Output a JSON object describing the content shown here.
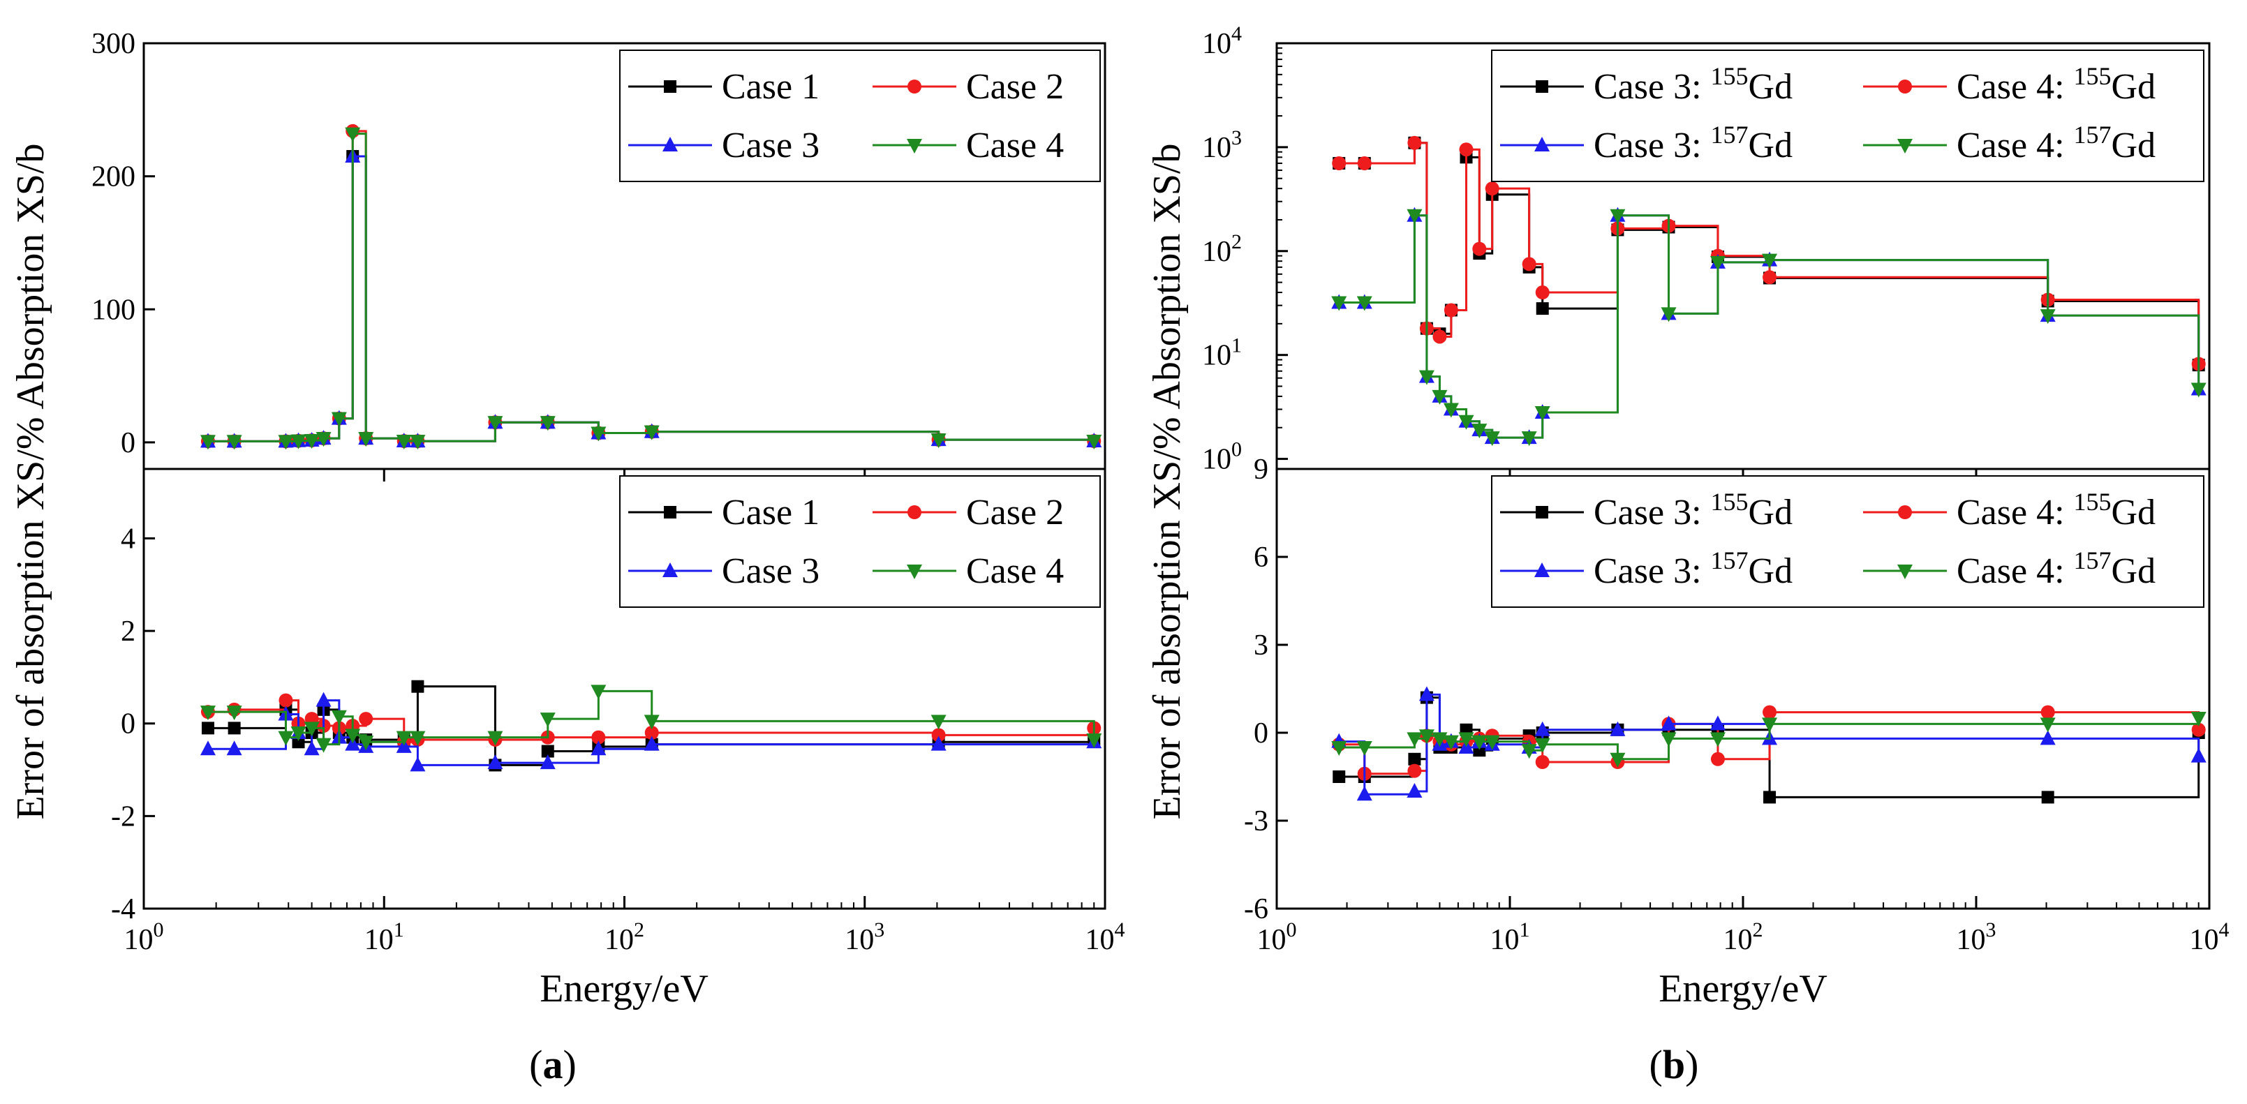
{
  "colors": {
    "case1": "#000000",
    "case2": "#ee1c1c",
    "case3": "#1c1cee",
    "case4": "#1f8a1f"
  },
  "panel_a": {
    "ylabel": "Error of absorption XS/% Absorption XS/b",
    "xlabel": "Energy/eV",
    "caption": {
      "open": "(",
      "letter": "a",
      "close": ")"
    },
    "top_yticks": [
      "0",
      "100",
      "200",
      "300"
    ],
    "bottom_yticks": [
      "-4",
      "-2",
      "0",
      "2",
      "4"
    ],
    "xticks": [
      {
        "base": "10",
        "exp": "0"
      },
      {
        "base": "10",
        "exp": "1"
      },
      {
        "base": "10",
        "exp": "2"
      },
      {
        "base": "10",
        "exp": "3"
      },
      {
        "base": "10",
        "exp": "4"
      }
    ],
    "legend": [
      {
        "text": "Case 1",
        "sup": "",
        "tail": ""
      },
      {
        "text": "Case 2",
        "sup": "",
        "tail": ""
      },
      {
        "text": "Case 3",
        "sup": "",
        "tail": ""
      },
      {
        "text": "Case 4",
        "sup": "",
        "tail": ""
      }
    ]
  },
  "panel_b": {
    "ylabel": "Error of absorption XS/% Absorption XS/b",
    "xlabel": "Energy/eV",
    "caption": {
      "open": "(",
      "letter": "b",
      "close": ")"
    },
    "top_yticks": [
      {
        "base": "10",
        "exp": "0"
      },
      {
        "base": "10",
        "exp": "1"
      },
      {
        "base": "10",
        "exp": "2"
      },
      {
        "base": "10",
        "exp": "3"
      },
      {
        "base": "10",
        "exp": "4"
      }
    ],
    "bottom_yticks": [
      "-6",
      "-3",
      "0",
      "3",
      "6",
      "9"
    ],
    "xticks": [
      {
        "base": "10",
        "exp": "0"
      },
      {
        "base": "10",
        "exp": "1"
      },
      {
        "base": "10",
        "exp": "2"
      },
      {
        "base": "10",
        "exp": "3"
      },
      {
        "base": "10",
        "exp": "4"
      }
    ],
    "legend": [
      {
        "text": "Case 3: ",
        "sup": "155",
        "tail": "Gd"
      },
      {
        "text": "Case 4: ",
        "sup": "155",
        "tail": "Gd"
      },
      {
        "text": "Case 3: ",
        "sup": "157",
        "tail": "Gd"
      },
      {
        "text": "Case 4: ",
        "sup": "157",
        "tail": "Gd"
      }
    ]
  },
  "chart_data": [
    {
      "panel": "a-top",
      "type": "line",
      "step": "post",
      "xscale": "log",
      "xlim": [
        1,
        10000
      ],
      "ylim": [
        -20,
        300
      ],
      "xlabel": "Energy/eV",
      "ylabel": "Absorption XS/b",
      "legend_placement": "top-right",
      "series": [
        {
          "name": "Case 1",
          "marker": "square",
          "color": "#000000",
          "x": [
            1.85,
            2.38,
            3.9,
            4.4,
            5.0,
            5.6,
            6.5,
            7.4,
            8.4,
            12.1,
            13.8,
            29,
            48,
            78,
            130,
            2030,
            9000
          ],
          "y": [
            0.8,
            0.8,
            0.8,
            1.2,
            1.5,
            3,
            18,
            215,
            3,
            1,
            0.9,
            15,
            15,
            7,
            8,
            2,
            1
          ]
        },
        {
          "name": "Case 2",
          "marker": "circle",
          "color": "#ee1c1c",
          "x": [
            1.85,
            2.38,
            3.9,
            4.4,
            5.0,
            5.6,
            6.5,
            7.4,
            8.4,
            12.1,
            13.8,
            29,
            48,
            78,
            130,
            2030,
            9000
          ],
          "y": [
            0.8,
            0.8,
            0.8,
            1.2,
            1.5,
            3,
            18,
            234,
            3,
            1,
            0.9,
            15,
            15,
            7,
            8,
            2,
            1
          ]
        },
        {
          "name": "Case 3",
          "marker": "triangle-up",
          "color": "#1c1cee",
          "x": [
            1.85,
            2.38,
            3.9,
            4.4,
            5.0,
            5.6,
            6.5,
            7.4,
            8.4,
            12.1,
            13.8,
            29,
            48,
            78,
            130,
            2030,
            9000
          ],
          "y": [
            0.8,
            0.8,
            0.8,
            1.2,
            1.5,
            3,
            18,
            215,
            3,
            1,
            0.9,
            15,
            15,
            7,
            8,
            2,
            1
          ]
        },
        {
          "name": "Case 4",
          "marker": "triangle-down",
          "color": "#1f8a1f",
          "x": [
            1.85,
            2.38,
            3.9,
            4.4,
            5.0,
            5.6,
            6.5,
            7.4,
            8.4,
            12.1,
            13.8,
            29,
            48,
            78,
            130,
            2030,
            9000
          ],
          "y": [
            0.8,
            0.8,
            0.8,
            1.2,
            1.5,
            3,
            18,
            232,
            3,
            1,
            0.9,
            15,
            15,
            7,
            8,
            2,
            1
          ]
        }
      ]
    },
    {
      "panel": "a-bottom",
      "type": "line",
      "step": "post",
      "xscale": "log",
      "xlim": [
        1,
        10000
      ],
      "ylim": [
        -4,
        5.5
      ],
      "xlabel": "Energy/eV",
      "ylabel": "Error of absorption XS/%",
      "legend_placement": "top-right",
      "series": [
        {
          "name": "Case 1",
          "marker": "square",
          "color": "#000000",
          "x": [
            1.85,
            2.38,
            3.9,
            4.4,
            5.0,
            5.6,
            6.5,
            7.4,
            8.4,
            12.1,
            13.8,
            29,
            48,
            78,
            130,
            2030,
            9000
          ],
          "y": [
            -0.1,
            -0.1,
            0.3,
            -0.4,
            -0.2,
            0.3,
            -0.2,
            -0.3,
            -0.35,
            -0.35,
            0.8,
            -0.9,
            -0.6,
            -0.5,
            -0.45,
            -0.4,
            -0.35
          ]
        },
        {
          "name": "Case 2",
          "marker": "circle",
          "color": "#ee1c1c",
          "x": [
            1.85,
            2.38,
            3.9,
            4.4,
            5.0,
            5.6,
            6.5,
            7.4,
            8.4,
            12.1,
            13.8,
            29,
            48,
            78,
            130,
            2030,
            9000
          ],
          "y": [
            0.25,
            0.3,
            0.5,
            0.0,
            0.1,
            -0.05,
            -0.1,
            -0.05,
            0.1,
            -0.4,
            -0.35,
            -0.35,
            -0.3,
            -0.3,
            -0.2,
            -0.25,
            -0.1
          ]
        },
        {
          "name": "Case 3",
          "marker": "triangle-up",
          "color": "#1c1cee",
          "x": [
            1.85,
            2.38,
            3.9,
            4.4,
            5.0,
            5.6,
            6.5,
            7.4,
            8.4,
            12.1,
            13.8,
            29,
            48,
            78,
            130,
            2030,
            9000
          ],
          "y": [
            -0.55,
            -0.55,
            0.2,
            -0.2,
            -0.55,
            0.5,
            -0.3,
            -0.45,
            -0.5,
            -0.5,
            -0.9,
            -0.85,
            -0.85,
            -0.55,
            -0.45,
            -0.45,
            -0.4
          ]
        },
        {
          "name": "Case 4",
          "marker": "triangle-down",
          "color": "#1f8a1f",
          "x": [
            1.85,
            2.38,
            3.9,
            4.4,
            5.0,
            5.6,
            6.5,
            7.4,
            8.4,
            12.1,
            13.8,
            29,
            48,
            78,
            130,
            2030,
            9000
          ],
          "y": [
            0.25,
            0.25,
            -0.3,
            -0.2,
            -0.1,
            -0.45,
            0.15,
            -0.25,
            -0.4,
            -0.3,
            -0.3,
            -0.3,
            0.1,
            0.7,
            0.05,
            0.05,
            -0.35
          ]
        }
      ]
    },
    {
      "panel": "b-top",
      "type": "line",
      "step": "post",
      "xscale": "log",
      "yscale": "log",
      "xlim": [
        1,
        10000
      ],
      "ylim": [
        0.8,
        10000
      ],
      "xlabel": "Energy/eV",
      "ylabel": "Absorption XS/b",
      "legend_placement": "top-right",
      "series": [
        {
          "name": "Case 3: 155Gd",
          "marker": "square",
          "color": "#000000",
          "x": [
            1.85,
            2.38,
            3.9,
            4.4,
            5.0,
            5.6,
            6.5,
            7.4,
            8.4,
            12.1,
            13.8,
            29,
            48,
            78,
            130,
            2030,
            9000
          ],
          "y": [
            700,
            700,
            1100,
            18,
            16,
            27,
            800,
            95,
            350,
            70,
            28,
            160,
            170,
            88,
            55,
            33,
            8
          ]
        },
        {
          "name": "Case 4: 155Gd",
          "marker": "circle",
          "color": "#ee1c1c",
          "x": [
            1.85,
            2.38,
            3.9,
            4.4,
            5.0,
            5.6,
            6.5,
            7.4,
            8.4,
            12.1,
            13.8,
            29,
            48,
            78,
            130,
            2030,
            9000
          ],
          "y": [
            700,
            700,
            1100,
            18,
            15,
            27,
            950,
            105,
            400,
            75,
            40,
            165,
            175,
            90,
            56,
            34,
            8.2
          ]
        },
        {
          "name": "Case 3: 157Gd",
          "marker": "triangle-up",
          "color": "#1c1cee",
          "x": [
            1.85,
            2.38,
            3.9,
            4.4,
            5.0,
            5.6,
            6.5,
            7.4,
            8.4,
            12.1,
            13.8,
            29,
            48,
            78,
            130,
            2030,
            9000
          ],
          "y": [
            32,
            32,
            220,
            6.2,
            4.0,
            3.0,
            2.3,
            1.9,
            1.6,
            1.6,
            2.8,
            220,
            25,
            78,
            82,
            24,
            4.7
          ]
        },
        {
          "name": "Case 4: 157Gd",
          "marker": "triangle-down",
          "color": "#1f8a1f",
          "x": [
            1.85,
            2.38,
            3.9,
            4.4,
            5.0,
            5.6,
            6.5,
            7.4,
            8.4,
            12.1,
            13.8,
            29,
            48,
            78,
            130,
            2030,
            9000
          ],
          "y": [
            32,
            32,
            220,
            6.2,
            4.0,
            3.0,
            2.3,
            1.9,
            1.6,
            1.6,
            2.8,
            220,
            25,
            78,
            82,
            24,
            4.7
          ]
        }
      ]
    },
    {
      "panel": "b-bottom",
      "type": "line",
      "step": "post",
      "xscale": "log",
      "xlim": [
        1,
        10000
      ],
      "ylim": [
        -6,
        9
      ],
      "xlabel": "Energy/eV",
      "ylabel": "Error of absorption XS/%",
      "legend_placement": "top-right",
      "series": [
        {
          "name": "Case 3: 155Gd",
          "marker": "square",
          "color": "#000000",
          "x": [
            1.85,
            2.38,
            3.9,
            4.4,
            5.0,
            5.6,
            6.5,
            7.4,
            8.4,
            12.1,
            13.8,
            29,
            48,
            78,
            130,
            2030,
            9000
          ],
          "y": [
            -1.5,
            -1.5,
            -0.9,
            1.2,
            -0.5,
            -0.5,
            0.1,
            -0.6,
            -0.2,
            -0.1,
            0.0,
            0.1,
            0.1,
            0.1,
            -2.2,
            -2.2,
            0.0
          ]
        },
        {
          "name": "Case 4: 155Gd",
          "marker": "circle",
          "color": "#ee1c1c",
          "x": [
            1.85,
            2.38,
            3.9,
            4.4,
            5.0,
            5.6,
            6.5,
            7.4,
            8.4,
            12.1,
            13.8,
            29,
            48,
            78,
            130,
            2030,
            9000
          ],
          "y": [
            -0.4,
            -1.4,
            -1.3,
            -0.1,
            -0.3,
            -0.4,
            -0.3,
            -0.2,
            -0.1,
            -0.3,
            -1.0,
            -1.0,
            0.3,
            -0.9,
            0.7,
            0.7,
            0.1
          ]
        },
        {
          "name": "Case 3: 157Gd",
          "marker": "triangle-up",
          "color": "#1c1cee",
          "x": [
            1.85,
            2.38,
            3.9,
            4.4,
            5.0,
            5.6,
            6.5,
            7.4,
            8.4,
            12.1,
            13.8,
            29,
            48,
            78,
            130,
            2030,
            9000
          ],
          "y": [
            -0.3,
            -2.1,
            -2.0,
            1.3,
            -0.4,
            -0.3,
            -0.5,
            -0.3,
            -0.4,
            -0.5,
            0.1,
            0.1,
            0.3,
            0.3,
            -0.2,
            -0.2,
            -0.8
          ]
        },
        {
          "name": "Case 4: 157Gd",
          "marker": "triangle-down",
          "color": "#1f8a1f",
          "x": [
            1.85,
            2.38,
            3.9,
            4.4,
            5.0,
            5.6,
            6.5,
            7.4,
            8.4,
            12.1,
            13.8,
            29,
            48,
            78,
            130,
            2030,
            9000
          ],
          "y": [
            -0.5,
            -0.5,
            -0.2,
            -0.1,
            -0.2,
            -0.3,
            -0.2,
            -0.3,
            -0.3,
            -0.6,
            -0.4,
            -0.9,
            -0.2,
            -0.2,
            0.3,
            0.3,
            0.5
          ]
        }
      ]
    }
  ]
}
